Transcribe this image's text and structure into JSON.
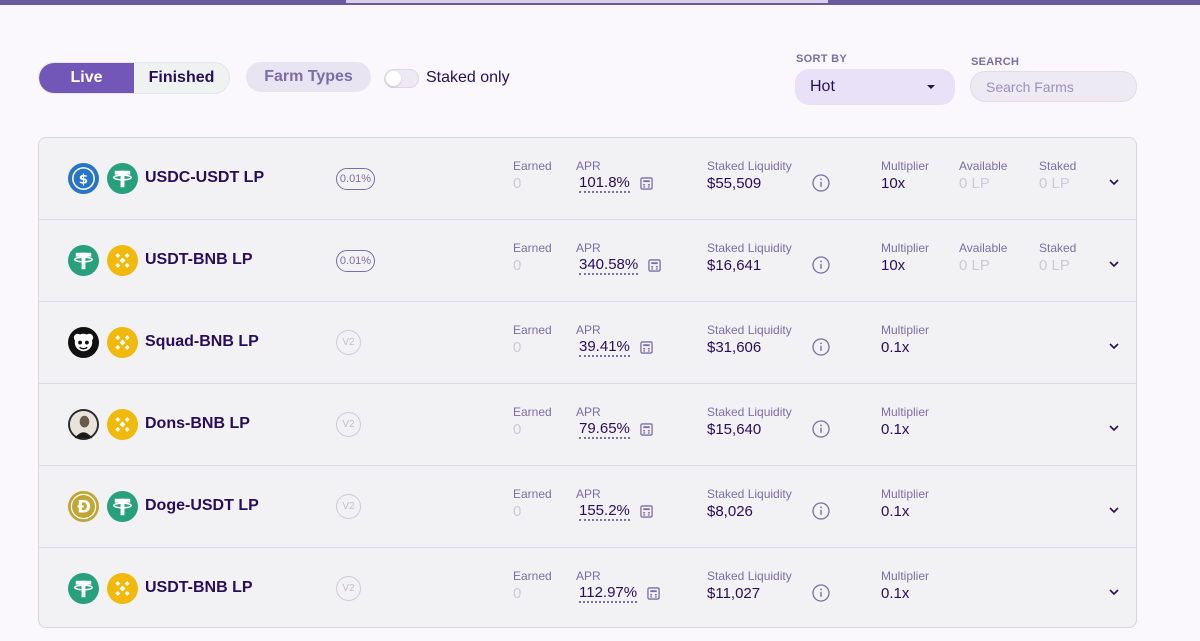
{
  "filters": {
    "live_label": "Live",
    "finished_label": "Finished",
    "farm_types_label": "Farm Types",
    "staked_only_label": "Staked only",
    "sort_label": "SORT BY",
    "sort_value": "Hot",
    "search_label": "SEARCH",
    "search_placeholder": "Search Farms"
  },
  "labels": {
    "earned": "Earned",
    "apr": "APR",
    "liquidity": "Staked Liquidity",
    "multiplier": "Multiplier",
    "available": "Available",
    "staked": "Staked"
  },
  "farms": [
    {
      "pair": "USDC-USDT LP",
      "badge": "0.01%",
      "earned": "0",
      "apr": "101.8%",
      "liquidity": "$55,509",
      "multiplier": "10x",
      "available": "0 LP",
      "staked": "0 LP",
      "token1": "usdc-icon",
      "token2": "usdt-icon"
    },
    {
      "pair": "USDT-BNB LP",
      "badge": "0.01%",
      "earned": "0",
      "apr": "340.58%",
      "liquidity": "$16,641",
      "multiplier": "10x",
      "available": "0 LP",
      "staked": "0 LP",
      "token1": "usdt-icon",
      "token2": "bnb-icon"
    },
    {
      "pair": "Squad-BNB LP",
      "badge": "V2",
      "earned": "0",
      "apr": "39.41%",
      "liquidity": "$31,606",
      "multiplier": "0.1x",
      "token1": "squad-icon",
      "token2": "bnb-icon"
    },
    {
      "pair": "Dons-BNB LP",
      "badge": "V2",
      "earned": "0",
      "apr": "79.65%",
      "liquidity": "$15,640",
      "multiplier": "0.1x",
      "token1": "dons-icon",
      "token2": "bnb-icon"
    },
    {
      "pair": "Doge-USDT LP",
      "badge": "V2",
      "earned": "0",
      "apr": "155.2%",
      "liquidity": "$8,026",
      "multiplier": "0.1x",
      "token1": "doge-icon",
      "token2": "usdt-icon"
    },
    {
      "pair": "USDT-BNB LP",
      "badge": "V2",
      "earned": "0",
      "apr": "112.97%",
      "liquidity": "$11,027",
      "multiplier": "0.1x",
      "token1": "usdt-icon",
      "token2": "bnb-icon"
    }
  ],
  "colors": {
    "accent": "#7256b8",
    "text": "#280d5f",
    "secondary": "#7a6eaa",
    "usdc": "#2775ca",
    "usdt": "#26a17b",
    "bnb": "#f0b90b",
    "doge": "#c2a633"
  }
}
